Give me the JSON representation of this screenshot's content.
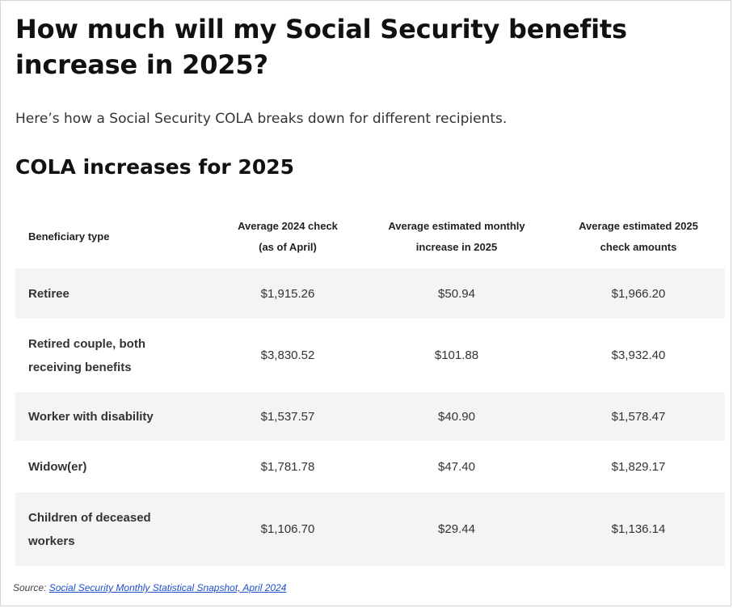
{
  "title": "How much will my Social Security benefits increase in 2025?",
  "subtitle": "Here’s how a Social Security COLA breaks down for different recipients.",
  "section_title": "COLA increases for 2025",
  "table": {
    "headers": [
      [
        "Beneficiary type"
      ],
      [
        "Average 2024 check",
        "(as of April)"
      ],
      [
        "Average estimated monthly",
        "increase in 2025"
      ],
      [
        "Average estimated 2025",
        "check amounts"
      ]
    ],
    "rows": [
      {
        "type": [
          "Retiree"
        ],
        "check_2024": "$1,915.26",
        "increase_2025": "$50.94",
        "check_2025": "$1,966.20"
      },
      {
        "type": [
          "Retired couple, both",
          "receiving benefits"
        ],
        "check_2024": "$3,830.52",
        "increase_2025": "$101.88",
        "check_2025": "$3,932.40"
      },
      {
        "type": [
          "Worker with disability"
        ],
        "check_2024": "$1,537.57",
        "increase_2025": "$40.90",
        "check_2025": "$1,578.47"
      },
      {
        "type": [
          "Widow(er)"
        ],
        "check_2024": "$1,781.78",
        "increase_2025": "$47.40",
        "check_2025": "$1,829.17"
      },
      {
        "type": [
          "Children of deceased",
          "workers"
        ],
        "check_2024": "$1,106.70",
        "increase_2025": "$29.44",
        "check_2025": "$1,136.14"
      }
    ]
  },
  "source": {
    "label": "Source:",
    "link_text": "Social Security Monthly Statistical Snapshot, April 2024"
  },
  "colors": {
    "shaded_row": "#f4f4f6",
    "link": "#1f4fcc"
  }
}
